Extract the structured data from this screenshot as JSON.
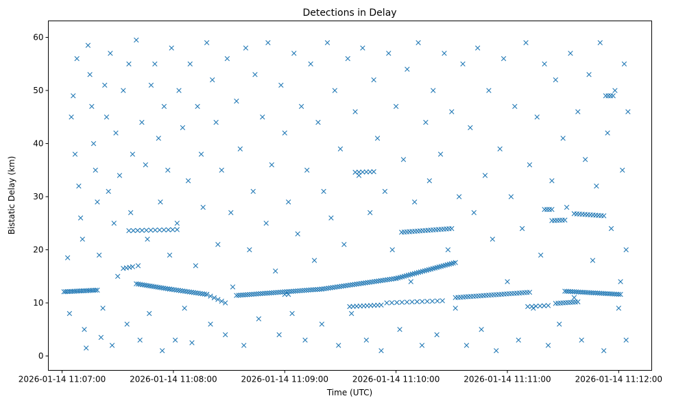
{
  "chart_data": {
    "type": "scatter",
    "title": "Detections in Delay",
    "xlabel": "Time (UTC)",
    "ylabel": "Bistatic Delay (km)",
    "x_units": "seconds after 2026-01-14 11:07:00",
    "xlim": [
      -7.4,
      317.8
    ],
    "ylim": [
      -2.7,
      63.1
    ],
    "grid": false,
    "marker": "x",
    "color": "#1f77b4",
    "x_ticks": [
      {
        "value": 0,
        "label": "2026-01-14 11:07:00"
      },
      {
        "value": 60,
        "label": "2026-01-14 11:08:00"
      },
      {
        "value": 120,
        "label": "2026-01-14 11:09:00"
      },
      {
        "value": 180,
        "label": "2026-01-14 11:10:00"
      },
      {
        "value": 240,
        "label": "2026-01-14 11:11:00"
      },
      {
        "value": 300,
        "label": "2026-01-14 11:12:00"
      }
    ],
    "y_ticks": [
      {
        "value": 0,
        "label": "0"
      },
      {
        "value": 10,
        "label": "10"
      },
      {
        "value": 20,
        "label": "20"
      },
      {
        "value": 30,
        "label": "30"
      },
      {
        "value": 40,
        "label": "40"
      },
      {
        "value": 50,
        "label": "50"
      },
      {
        "value": 60,
        "label": "60"
      }
    ],
    "tracks": [
      [
        1,
        12.1,
        19,
        12.4,
        20
      ],
      [
        40,
        13.6,
        58,
        12.6,
        18
      ],
      [
        58,
        12.6,
        78,
        11.6,
        18
      ],
      [
        78,
        11.6,
        88,
        10.0,
        6
      ],
      [
        94,
        11.4,
        140,
        12.6,
        40
      ],
      [
        140,
        12.6,
        180,
        14.6,
        35
      ],
      [
        180,
        14.6,
        212,
        17.6,
        30
      ],
      [
        183,
        23.3,
        210,
        24.0,
        20
      ],
      [
        155,
        9.3,
        172,
        9.6,
        10
      ],
      [
        175,
        10.0,
        205,
        10.4,
        12
      ],
      [
        212,
        11.0,
        252,
        12.0,
        30
      ],
      [
        251,
        9.3,
        262,
        9.5,
        6
      ],
      [
        260,
        27.6,
        264,
        27.6,
        4
      ],
      [
        264,
        25.5,
        271,
        25.6,
        6
      ],
      [
        266,
        9.9,
        278,
        10.2,
        10
      ],
      [
        271,
        12.2,
        301,
        11.6,
        30
      ],
      [
        276,
        26.8,
        292,
        26.4,
        12
      ],
      [
        293,
        49.0,
        297,
        49.0,
        4
      ],
      [
        158,
        34.6,
        168,
        34.7,
        6
      ],
      [
        36,
        23.6,
        62,
        23.8,
        12
      ],
      [
        33,
        16.5,
        38,
        16.8,
        4
      ],
      [
        120,
        11.6,
        122,
        11.6,
        2
      ]
    ],
    "points": [
      [
        3,
        18.5
      ],
      [
        4,
        8
      ],
      [
        5,
        45
      ],
      [
        6,
        49
      ],
      [
        7,
        38
      ],
      [
        8,
        56
      ],
      [
        9,
        32
      ],
      [
        10,
        26
      ],
      [
        11,
        22
      ],
      [
        12,
        5
      ],
      [
        13,
        1.5
      ],
      [
        14,
        58.5
      ],
      [
        15,
        53
      ],
      [
        16,
        47
      ],
      [
        17,
        40
      ],
      [
        18,
        35
      ],
      [
        19,
        29
      ],
      [
        20,
        19
      ],
      [
        21,
        3.5
      ],
      [
        22,
        9
      ],
      [
        23,
        51
      ],
      [
        24,
        45
      ],
      [
        25,
        31
      ],
      [
        26,
        57
      ],
      [
        27,
        2
      ],
      [
        28,
        25
      ],
      [
        29,
        42
      ],
      [
        30,
        15
      ],
      [
        31,
        34
      ],
      [
        33,
        50
      ],
      [
        35,
        6
      ],
      [
        36,
        55
      ],
      [
        37,
        27
      ],
      [
        38,
        38
      ],
      [
        40,
        59.5
      ],
      [
        41,
        17
      ],
      [
        42,
        3
      ],
      [
        43,
        44
      ],
      [
        45,
        36
      ],
      [
        46,
        22
      ],
      [
        47,
        8
      ],
      [
        48,
        51
      ],
      [
        50,
        55
      ],
      [
        52,
        41
      ],
      [
        53,
        29
      ],
      [
        54,
        1
      ],
      [
        55,
        47
      ],
      [
        57,
        35
      ],
      [
        58,
        19
      ],
      [
        59,
        58
      ],
      [
        61,
        3
      ],
      [
        62,
        25
      ],
      [
        63,
        50
      ],
      [
        65,
        43
      ],
      [
        66,
        9
      ],
      [
        68,
        33
      ],
      [
        69,
        55
      ],
      [
        70,
        2.5
      ],
      [
        72,
        17
      ],
      [
        73,
        47
      ],
      [
        75,
        38
      ],
      [
        76,
        28
      ],
      [
        78,
        59
      ],
      [
        80,
        6
      ],
      [
        81,
        52
      ],
      [
        83,
        44
      ],
      [
        84,
        21
      ],
      [
        86,
        35
      ],
      [
        88,
        4
      ],
      [
        89,
        56
      ],
      [
        91,
        27
      ],
      [
        92,
        13
      ],
      [
        94,
        48
      ],
      [
        96,
        39
      ],
      [
        98,
        2
      ],
      [
        99,
        58
      ],
      [
        101,
        20
      ],
      [
        103,
        31
      ],
      [
        104,
        53
      ],
      [
        106,
        7
      ],
      [
        108,
        45
      ],
      [
        110,
        25
      ],
      [
        111,
        59
      ],
      [
        113,
        36
      ],
      [
        115,
        16
      ],
      [
        117,
        4
      ],
      [
        118,
        51
      ],
      [
        120,
        42
      ],
      [
        122,
        29
      ],
      [
        124,
        8
      ],
      [
        125,
        57
      ],
      [
        127,
        23
      ],
      [
        129,
        47
      ],
      [
        131,
        3
      ],
      [
        132,
        35
      ],
      [
        134,
        55
      ],
      [
        136,
        18
      ],
      [
        138,
        44
      ],
      [
        140,
        6
      ],
      [
        141,
        31
      ],
      [
        143,
        59
      ],
      [
        145,
        26
      ],
      [
        147,
        50
      ],
      [
        149,
        2
      ],
      [
        150,
        39
      ],
      [
        152,
        21
      ],
      [
        154,
        56
      ],
      [
        156,
        8
      ],
      [
        158,
        46
      ],
      [
        160,
        34
      ],
      [
        162,
        58
      ],
      [
        164,
        3
      ],
      [
        166,
        27
      ],
      [
        168,
        52
      ],
      [
        170,
        41
      ],
      [
        172,
        1
      ],
      [
        174,
        31
      ],
      [
        176,
        57
      ],
      [
        178,
        20
      ],
      [
        180,
        47
      ],
      [
        182,
        5
      ],
      [
        184,
        37
      ],
      [
        186,
        54
      ],
      [
        188,
        14
      ],
      [
        190,
        29
      ],
      [
        192,
        59
      ],
      [
        194,
        2
      ],
      [
        196,
        44
      ],
      [
        198,
        33
      ],
      [
        200,
        50
      ],
      [
        202,
        4
      ],
      [
        204,
        38
      ],
      [
        206,
        57
      ],
      [
        208,
        20
      ],
      [
        210,
        46
      ],
      [
        212,
        9
      ],
      [
        214,
        30
      ],
      [
        216,
        55
      ],
      [
        218,
        2
      ],
      [
        220,
        43
      ],
      [
        222,
        27
      ],
      [
        224,
        58
      ],
      [
        226,
        5
      ],
      [
        228,
        34
      ],
      [
        230,
        50
      ],
      [
        232,
        22
      ],
      [
        234,
        1
      ],
      [
        236,
        39
      ],
      [
        238,
        56
      ],
      [
        240,
        14
      ],
      [
        242,
        30
      ],
      [
        244,
        47
      ],
      [
        246,
        3
      ],
      [
        248,
        24
      ],
      [
        250,
        59
      ],
      [
        252,
        36
      ],
      [
        254,
        9
      ],
      [
        256,
        45
      ],
      [
        258,
        19
      ],
      [
        260,
        55
      ],
      [
        262,
        2
      ],
      [
        264,
        33
      ],
      [
        266,
        52
      ],
      [
        268,
        6
      ],
      [
        270,
        41
      ],
      [
        272,
        28
      ],
      [
        274,
        57
      ],
      [
        276,
        11
      ],
      [
        278,
        46
      ],
      [
        280,
        3
      ],
      [
        282,
        37
      ],
      [
        284,
        53
      ],
      [
        286,
        18
      ],
      [
        288,
        32
      ],
      [
        290,
        59
      ],
      [
        292,
        1
      ],
      [
        294,
        42
      ],
      [
        296,
        24
      ],
      [
        298,
        50
      ],
      [
        300,
        9
      ],
      [
        302,
        35
      ],
      [
        303,
        55
      ],
      [
        304,
        20
      ],
      [
        305,
        46
      ],
      [
        304,
        3
      ],
      [
        301,
        14
      ]
    ]
  }
}
